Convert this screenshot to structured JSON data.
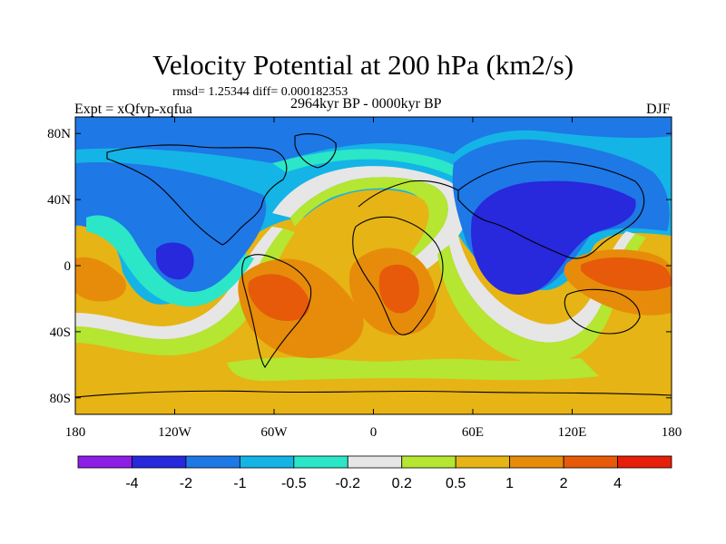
{
  "title": "Velocity Potential at 200 hPa (km2/s)",
  "stats_line": "rmsd= 1.25344 diff= 0.000182353",
  "experiment": "Expt = xQfvp-xqfua",
  "period": "2964kyr BP - 0000kyr BP",
  "season": "DJF",
  "lon_ticks": [
    {
      "value": -180,
      "label": "180"
    },
    {
      "value": -120,
      "label": "120W"
    },
    {
      "value": -60,
      "label": "60W"
    },
    {
      "value": 0,
      "label": "0"
    },
    {
      "value": 60,
      "label": "60E"
    },
    {
      "value": 120,
      "label": "120E"
    },
    {
      "value": 180,
      "label": "180"
    }
  ],
  "lat_ticks": [
    {
      "value": 80,
      "label": "80N"
    },
    {
      "value": 40,
      "label": "40N"
    },
    {
      "value": 0,
      "label": "0"
    },
    {
      "value": -40,
      "label": "40S"
    },
    {
      "value": -80,
      "label": "80S"
    }
  ],
  "lon_range": [
    -180,
    180
  ],
  "lat_range": [
    -90,
    90
  ],
  "colorbar": {
    "colors": [
      "#8c1ee6",
      "#2828dc",
      "#1e78e6",
      "#14b4e6",
      "#2ce6c8",
      "#e6e6e6",
      "#b4e632",
      "#e6b414",
      "#e68c0a",
      "#e65a0a",
      "#e61e0a"
    ],
    "labels": [
      "-4",
      "-2",
      "-1",
      "-0.5",
      "-0.2",
      "0.2",
      "0.5",
      "1",
      "2",
      "4"
    ]
  }
}
